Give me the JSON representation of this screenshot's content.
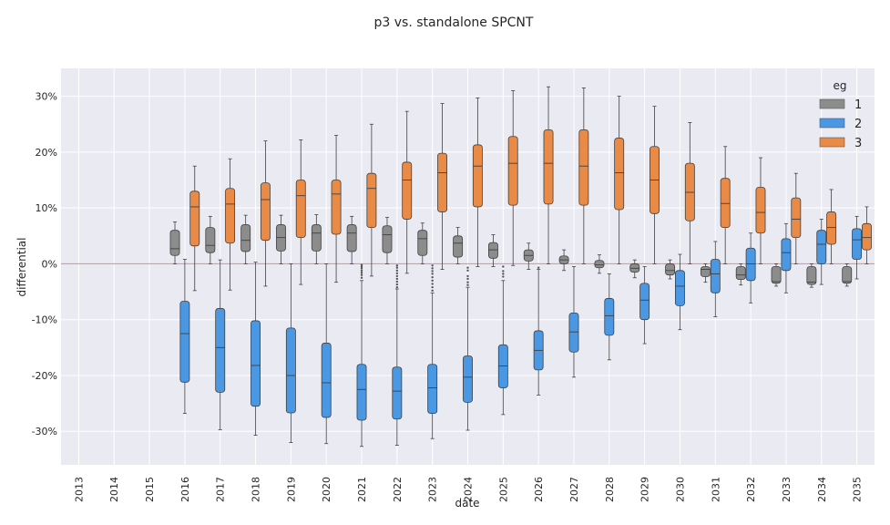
{
  "chart_data": {
    "type": "boxplot",
    "title": "p3 vs. standalone SPCNT",
    "xlabel": "date",
    "ylabel": "differential",
    "ylim": [
      -0.36,
      0.35
    ],
    "yticks": [
      -0.3,
      -0.2,
      -0.1,
      0.0,
      0.1,
      0.2,
      0.3
    ],
    "ytick_labels": [
      "-30%",
      "-20%",
      "-10%",
      "0%",
      "10%",
      "20%",
      "30%"
    ],
    "reference_line": 0.0,
    "categories": [
      "2013",
      "2014",
      "2015",
      "2016",
      "2017",
      "2018",
      "2019",
      "2020",
      "2021",
      "2022",
      "2023",
      "2024",
      "2025",
      "2026",
      "2027",
      "2028",
      "2029",
      "2030",
      "2031",
      "2032",
      "2033",
      "2034",
      "2035"
    ],
    "legend": {
      "title": "eg",
      "position": "top-right",
      "entries": [
        "1",
        "2",
        "3"
      ]
    },
    "colors": {
      "1": "#8c8c8c",
      "2": "#4a97e3",
      "3": "#e98b47"
    },
    "series": [
      {
        "name": "1",
        "boxes": [
          null,
          null,
          null,
          {
            "whislo": 0.0,
            "q1": 0.015,
            "med": 0.027,
            "q3": 0.06,
            "whishi": 0.075
          },
          {
            "whislo": 0.0,
            "q1": 0.02,
            "med": 0.033,
            "q3": 0.065,
            "whishi": 0.085
          },
          {
            "whislo": 0.0,
            "q1": 0.022,
            "med": 0.042,
            "q3": 0.07,
            "whishi": 0.087
          },
          {
            "whislo": 0.0,
            "q1": 0.023,
            "med": 0.047,
            "q3": 0.07,
            "whishi": 0.087
          },
          {
            "whislo": 0.0,
            "q1": 0.023,
            "med": 0.055,
            "q3": 0.07,
            "whishi": 0.088
          },
          {
            "whislo": 0.0,
            "q1": 0.022,
            "med": 0.055,
            "q3": 0.07,
            "whishi": 0.085
          },
          {
            "whislo": 0.0,
            "q1": 0.02,
            "med": 0.052,
            "q3": 0.068,
            "whishi": 0.083
          },
          {
            "whislo": 0.0,
            "q1": 0.015,
            "med": 0.045,
            "q3": 0.06,
            "whishi": 0.073
          },
          {
            "whislo": 0.0,
            "q1": 0.012,
            "med": 0.037,
            "q3": 0.05,
            "whishi": 0.065
          },
          {
            "whislo": -0.005,
            "q1": 0.01,
            "med": 0.025,
            "q3": 0.038,
            "whishi": 0.052
          },
          {
            "whislo": -0.01,
            "q1": 0.005,
            "med": 0.015,
            "q3": 0.025,
            "whishi": 0.037
          },
          {
            "whislo": -0.012,
            "q1": 0.0,
            "med": 0.007,
            "q3": 0.014,
            "whishi": 0.025
          },
          {
            "whislo": -0.017,
            "q1": -0.007,
            "med": -0.002,
            "q3": 0.006,
            "whishi": 0.016
          },
          {
            "whislo": -0.025,
            "q1": -0.015,
            "med": -0.008,
            "q3": 0.0,
            "whishi": 0.007
          },
          {
            "whislo": -0.027,
            "q1": -0.02,
            "med": -0.012,
            "q3": 0.0,
            "whishi": 0.007
          },
          {
            "whislo": -0.033,
            "q1": -0.023,
            "med": -0.01,
            "q3": -0.005,
            "whishi": 0.0
          },
          {
            "whislo": -0.038,
            "q1": -0.028,
            "med": -0.02,
            "q3": -0.005,
            "whishi": 0.0
          },
          {
            "whislo": -0.04,
            "q1": -0.035,
            "med": -0.032,
            "q3": -0.005,
            "whishi": 0.0
          },
          {
            "whislo": -0.042,
            "q1": -0.037,
            "med": -0.033,
            "q3": -0.005,
            "whishi": 0.0
          },
          {
            "whislo": -0.04,
            "q1": -0.035,
            "med": -0.032,
            "q3": -0.005,
            "whishi": 0.0
          }
        ]
      },
      {
        "name": "2",
        "boxes": [
          null,
          null,
          null,
          {
            "whislo": -0.268,
            "q1": -0.212,
            "med": -0.125,
            "q3": -0.067,
            "whishi": 0.008,
            "fliers": []
          },
          {
            "whislo": -0.297,
            "q1": -0.23,
            "med": -0.15,
            "q3": -0.08,
            "whishi": 0.007,
            "fliers": []
          },
          {
            "whislo": -0.307,
            "q1": -0.255,
            "med": -0.182,
            "q3": -0.102,
            "whishi": 0.003,
            "fliers": []
          },
          {
            "whislo": -0.32,
            "q1": -0.267,
            "med": -0.2,
            "q3": -0.115,
            "whishi": 0.0,
            "fliers": []
          },
          {
            "whislo": -0.322,
            "q1": -0.275,
            "med": -0.213,
            "q3": -0.142,
            "whishi": 0.0,
            "fliers": []
          },
          {
            "whislo": -0.327,
            "q1": -0.28,
            "med": -0.225,
            "q3": -0.18,
            "whishi": -0.03,
            "fliers": [
              -0.002,
              -0.005,
              -0.008,
              -0.012,
              -0.016,
              -0.02,
              -0.025
            ]
          },
          {
            "whislo": -0.325,
            "q1": -0.278,
            "med": -0.228,
            "q3": -0.185,
            "whishi": -0.045,
            "fliers": [
              -0.003,
              -0.007,
              -0.012,
              -0.017,
              -0.022,
              -0.027,
              -0.032,
              -0.037,
              -0.042
            ]
          },
          {
            "whislo": -0.313,
            "q1": -0.268,
            "med": -0.222,
            "q3": -0.18,
            "whishi": -0.052,
            "fliers": [
              -0.003,
              -0.008,
              -0.013,
              -0.018,
              -0.024,
              -0.03,
              -0.036,
              -0.042,
              -0.048
            ]
          },
          {
            "whislo": -0.298,
            "q1": -0.248,
            "med": -0.203,
            "q3": -0.165,
            "whishi": -0.042,
            "fliers": [
              -0.007,
              -0.012,
              -0.022,
              -0.027,
              -0.033,
              -0.038
            ]
          },
          {
            "whislo": -0.27,
            "q1": -0.222,
            "med": -0.183,
            "q3": -0.145,
            "whishi": -0.03,
            "fliers": [
              -0.005,
              -0.013,
              -0.018,
              -0.023
            ]
          },
          {
            "whislo": -0.235,
            "q1": -0.19,
            "med": -0.155,
            "q3": -0.12,
            "whishi": -0.01,
            "fliers": [
              -0.007
            ]
          },
          {
            "whislo": -0.203,
            "q1": -0.158,
            "med": -0.122,
            "q3": -0.088,
            "whishi": -0.005,
            "fliers": []
          },
          {
            "whislo": -0.172,
            "q1": -0.128,
            "med": -0.093,
            "q3": -0.062,
            "whishi": -0.018,
            "fliers": []
          },
          {
            "whislo": -0.143,
            "q1": -0.1,
            "med": -0.065,
            "q3": -0.035,
            "whishi": -0.005,
            "fliers": []
          },
          {
            "whislo": -0.118,
            "q1": -0.075,
            "med": -0.04,
            "q3": -0.012,
            "whishi": 0.017,
            "fliers": []
          },
          {
            "whislo": -0.095,
            "q1": -0.052,
            "med": -0.018,
            "q3": 0.008,
            "whishi": 0.04,
            "fliers": []
          },
          {
            "whislo": -0.07,
            "q1": -0.03,
            "med": 0.0,
            "q3": 0.028,
            "whishi": 0.055,
            "fliers": []
          },
          {
            "whislo": -0.052,
            "q1": -0.012,
            "med": 0.02,
            "q3": 0.045,
            "whishi": 0.072,
            "fliers": []
          },
          {
            "whislo": -0.037,
            "q1": 0.0,
            "med": 0.035,
            "q3": 0.06,
            "whishi": 0.08,
            "fliers": []
          },
          {
            "whislo": -0.027,
            "q1": 0.008,
            "med": 0.043,
            "q3": 0.063,
            "whishi": 0.085,
            "fliers": []
          }
        ]
      },
      {
        "name": "3",
        "boxes": [
          null,
          null,
          null,
          {
            "whislo": -0.048,
            "q1": 0.032,
            "med": 0.102,
            "q3": 0.13,
            "whishi": 0.175
          },
          {
            "whislo": -0.047,
            "q1": 0.037,
            "med": 0.107,
            "q3": 0.135,
            "whishi": 0.188
          },
          {
            "whislo": -0.04,
            "q1": 0.042,
            "med": 0.115,
            "q3": 0.145,
            "whishi": 0.22
          },
          {
            "whislo": -0.037,
            "q1": 0.047,
            "med": 0.122,
            "q3": 0.15,
            "whishi": 0.222
          },
          {
            "whislo": -0.033,
            "q1": 0.053,
            "med": 0.125,
            "q3": 0.15,
            "whishi": 0.23
          },
          {
            "whislo": -0.022,
            "q1": 0.065,
            "med": 0.135,
            "q3": 0.162,
            "whishi": 0.25
          },
          {
            "whislo": -0.017,
            "q1": 0.08,
            "med": 0.15,
            "q3": 0.182,
            "whishi": 0.273
          },
          {
            "whislo": -0.01,
            "q1": 0.093,
            "med": 0.163,
            "q3": 0.198,
            "whishi": 0.287
          },
          {
            "whislo": -0.005,
            "q1": 0.102,
            "med": 0.175,
            "q3": 0.213,
            "whishi": 0.297
          },
          {
            "whislo": -0.003,
            "q1": 0.105,
            "med": 0.18,
            "q3": 0.228,
            "whishi": 0.31
          },
          {
            "whislo": 0.0,
            "q1": 0.107,
            "med": 0.18,
            "q3": 0.24,
            "whishi": 0.317
          },
          {
            "whislo": 0.0,
            "q1": 0.105,
            "med": 0.175,
            "q3": 0.24,
            "whishi": 0.315
          },
          {
            "whislo": 0.0,
            "q1": 0.097,
            "med": 0.163,
            "q3": 0.225,
            "whishi": 0.3
          },
          {
            "whislo": 0.0,
            "q1": 0.09,
            "med": 0.15,
            "q3": 0.21,
            "whishi": 0.282
          },
          {
            "whislo": 0.0,
            "q1": 0.077,
            "med": 0.128,
            "q3": 0.18,
            "whishi": 0.253
          },
          {
            "whislo": 0.0,
            "q1": 0.065,
            "med": 0.108,
            "q3": 0.153,
            "whishi": 0.21
          },
          {
            "whislo": 0.0,
            "q1": 0.055,
            "med": 0.092,
            "q3": 0.137,
            "whishi": 0.19
          },
          {
            "whislo": 0.0,
            "q1": 0.047,
            "med": 0.08,
            "q3": 0.118,
            "whishi": 0.162
          },
          {
            "whislo": 0.0,
            "q1": 0.035,
            "med": 0.065,
            "q3": 0.093,
            "whishi": 0.133
          },
          {
            "whislo": 0.0,
            "q1": 0.025,
            "med": 0.047,
            "q3": 0.072,
            "whishi": 0.102
          }
        ]
      }
    ]
  }
}
